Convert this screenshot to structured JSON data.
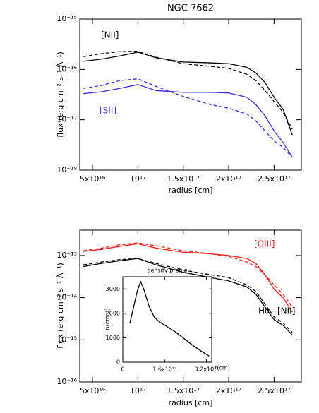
{
  "chart_data": [
    {
      "type": "line",
      "title": "NGC 7662",
      "xlabel": "radius [cm]",
      "ylabel": "flux (erg cm⁻² s⁻¹ Å⁻¹)",
      "ylog": true,
      "xlim": [
        3.6e+16,
        2.8e+17
      ],
      "ylim": [
        1e-18,
        1e-15
      ],
      "xticks": [
        {
          "value": 5e+16,
          "label": "5x10¹⁶"
        },
        {
          "value": 1e+17,
          "label": "10¹⁷"
        },
        {
          "value": 1.5e+17,
          "label": "1.5x10¹⁷"
        },
        {
          "value": 2e+17,
          "label": "2x10¹⁷"
        },
        {
          "value": 2.5e+17,
          "label": "2.5x10¹⁷"
        }
      ],
      "yticks": [
        {
          "value": 1e-18,
          "label": "10⁻¹⁸"
        },
        {
          "value": 1e-17,
          "label": "10⁻¹⁷"
        },
        {
          "value": 1e-16,
          "label": "10⁻¹⁶"
        },
        {
          "value": 1e-15,
          "label": "10⁻¹⁵"
        }
      ],
      "x": [
        4e+16,
        6e+16,
        8e+16,
        1e+17,
        1.2e+17,
        1.5e+17,
        1.8e+17,
        2e+17,
        2.2e+17,
        2.3e+17,
        2.4e+17,
        2.5e+17,
        2.6e+17,
        2.7e+17
      ],
      "series": [
        {
          "color": "#000000",
          "dash": false,
          "values": [
            1.45e-16,
            1.6e-16,
            1.85e-16,
            2.2e-16,
            1.7e-16,
            1.4e-16,
            1.35e-16,
            1.3e-16,
            1.1e-16,
            8.5e-17,
            5.5e-17,
            2.8e-17,
            1.6e-17,
            5e-18
          ]
        },
        {
          "color": "#000000",
          "dash": true,
          "values": [
            1.8e-16,
            2.05e-16,
            2.25e-16,
            2.3e-16,
            1.75e-16,
            1.3e-16,
            1.15e-16,
            1.05e-16,
            8e-17,
            6e-17,
            3.8e-17,
            2.3e-17,
            1.4e-17,
            6.5e-18
          ]
        },
        {
          "color": "#3a2fe0",
          "dash": false,
          "values": [
            3.3e-17,
            3.6e-17,
            4.2e-17,
            5e-17,
            3.8e-17,
            3.5e-17,
            3.5e-17,
            3.4e-17,
            2.8e-17,
            2e-17,
            1.2e-17,
            6e-18,
            3.5e-18,
            1.8e-18
          ]
        },
        {
          "color": "#3a2fe0",
          "dash": true,
          "values": [
            4.2e-17,
            4.8e-17,
            6e-17,
            6.5e-17,
            4.6e-17,
            2.9e-17,
            2e-17,
            1.7e-17,
            1.3e-17,
            9.5e-18,
            6e-18,
            3.8e-18,
            2.8e-18,
            1.8e-18
          ]
        }
      ],
      "annotations": [
        {
          "text": "[NII]",
          "color": "#000000"
        },
        {
          "text": "[SII]",
          "color": "#3a2fe0"
        }
      ]
    },
    {
      "type": "line",
      "xlabel": "radius [cm]",
      "ylabel": "flux (erg cm⁻² s⁻¹ Å⁻¹)",
      "ylog": true,
      "xlim": [
        3.6e+16,
        2.8e+17
      ],
      "ylim": [
        1e-16,
        4e-13
      ],
      "xticks": [
        {
          "value": 5e+16,
          "label": "5x10¹⁶"
        },
        {
          "value": 1e+17,
          "label": "10¹⁷"
        },
        {
          "value": 1.5e+17,
          "label": "1.5x10¹⁷"
        },
        {
          "value": 2e+17,
          "label": "2x10¹⁷"
        },
        {
          "value": 2.5e+17,
          "label": "2.5x10¹⁷"
        }
      ],
      "yticks": [
        {
          "value": 1e-16,
          "label": "10⁻¹⁶"
        },
        {
          "value": 1e-15,
          "label": "10⁻¹⁵"
        },
        {
          "value": 1e-14,
          "label": "10⁻¹⁴"
        },
        {
          "value": 1e-13,
          "label": "10⁻¹³"
        }
      ],
      "x": [
        4e+16,
        6e+16,
        8e+16,
        1e+17,
        1.2e+17,
        1.5e+17,
        1.8e+17,
        2e+17,
        2.2e+17,
        2.3e+17,
        2.4e+17,
        2.5e+17,
        2.6e+17,
        2.7e+17
      ],
      "series": [
        {
          "color": "#e8201a",
          "dash": false,
          "values": [
            1.25e-13,
            1.4e-13,
            1.65e-13,
            1.9e-13,
            1.5e-13,
            1.2e-13,
            1.1e-13,
            1e-13,
            8.5e-14,
            6.5e-14,
            3.5e-14,
            1.6e-14,
            1e-14,
            4.5e-15
          ]
        },
        {
          "color": "#e8201a",
          "dash": true,
          "values": [
            1.3e-13,
            1.5e-13,
            1.8e-13,
            2e-13,
            1.7e-13,
            1.3e-13,
            1.1e-13,
            9.5e-14,
            7e-14,
            5.5e-14,
            3.5e-14,
            2e-14,
            1.2e-14,
            6e-15
          ]
        },
        {
          "color": "#000000",
          "dash": false,
          "values": [
            5.5e-14,
            6.5e-14,
            7.5e-14,
            8.5e-14,
            6e-14,
            4e-14,
            3e-14,
            2.5e-14,
            1.8e-14,
            1.2e-14,
            6e-15,
            3e-15,
            2.2e-15,
            1.3e-15
          ]
        },
        {
          "color": "#000000",
          "dash": true,
          "values": [
            6e-14,
            7e-14,
            8e-14,
            8.5e-14,
            6.5e-14,
            4.5e-14,
            3.5e-14,
            3e-14,
            2e-14,
            1.4e-14,
            7e-15,
            3.5e-15,
            2.5e-15,
            1.5e-15
          ]
        }
      ],
      "annotations": [
        {
          "text": "[OIII]",
          "color": "#e8201a"
        },
        {
          "text": "Hα−[NII]",
          "color": "#000000"
        }
      ]
    },
    {
      "type": "line",
      "title": "density profile",
      "xlabel": "r(cm)",
      "ylabel": "n(cm⁻³)",
      "ylog": false,
      "xlim": [
        0,
        3.4e+17
      ],
      "ylim": [
        0,
        3500
      ],
      "xticks": [
        0,
        {
          "value": 1.6e+17,
          "label": "1.6x10¹⁷"
        },
        {
          "value": 3.2e+17,
          "label": "3.2x10¹⁷"
        }
      ],
      "yticks": [
        0,
        1000,
        2000,
        3000
      ],
      "x": [
        2.7e+16,
        4e+16,
        5.5e+16,
        6.8e+16,
        8e+16,
        1e+17,
        1.2e+17,
        1.4e+17,
        1.7e+17,
        2e+17,
        2.3e+17,
        2.6e+17,
        3e+17,
        3.3e+17
      ],
      "series": [
        {
          "color": "#000000",
          "dash": false,
          "values": [
            1600,
            2200,
            2900,
            3300,
            3000,
            2300,
            1850,
            1650,
            1450,
            1250,
            1000,
            750,
            450,
            250
          ]
        }
      ]
    }
  ]
}
